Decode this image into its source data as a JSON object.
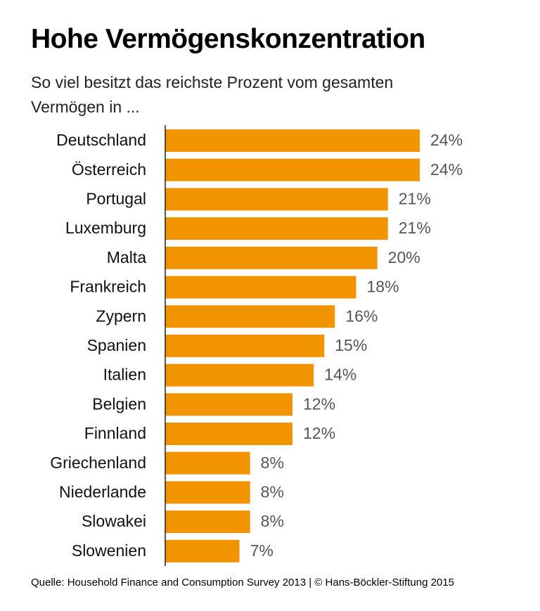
{
  "chart_data": {
    "type": "bar",
    "orientation": "horizontal",
    "title": "Hohe Vermögenskonzentration",
    "subtitle": "So viel besitzt das reichste Prozent vom gesamten Vermögen in ...",
    "categories": [
      "Deutschland",
      "Österreich",
      "Portugal",
      "Luxemburg",
      "Malta",
      "Frankreich",
      "Zypern",
      "Spanien",
      "Italien",
      "Belgien",
      "Finnland",
      "Griechenland",
      "Niederlande",
      "Slowakei",
      "Slowenien"
    ],
    "values": [
      24,
      24,
      21,
      21,
      20,
      18,
      16,
      15,
      14,
      12,
      12,
      8,
      8,
      8,
      7
    ],
    "value_labels": [
      "24%",
      "24%",
      "21%",
      "21%",
      "20%",
      "18%",
      "16%",
      "15%",
      "14%",
      "12%",
      "12%",
      "8%",
      "8%",
      "8%",
      "7%"
    ],
    "color": "#f29400",
    "source": "Quelle: Household Finance and Consumption Survey 2013 | © Hans-Böckler-Stiftung 2015"
  }
}
